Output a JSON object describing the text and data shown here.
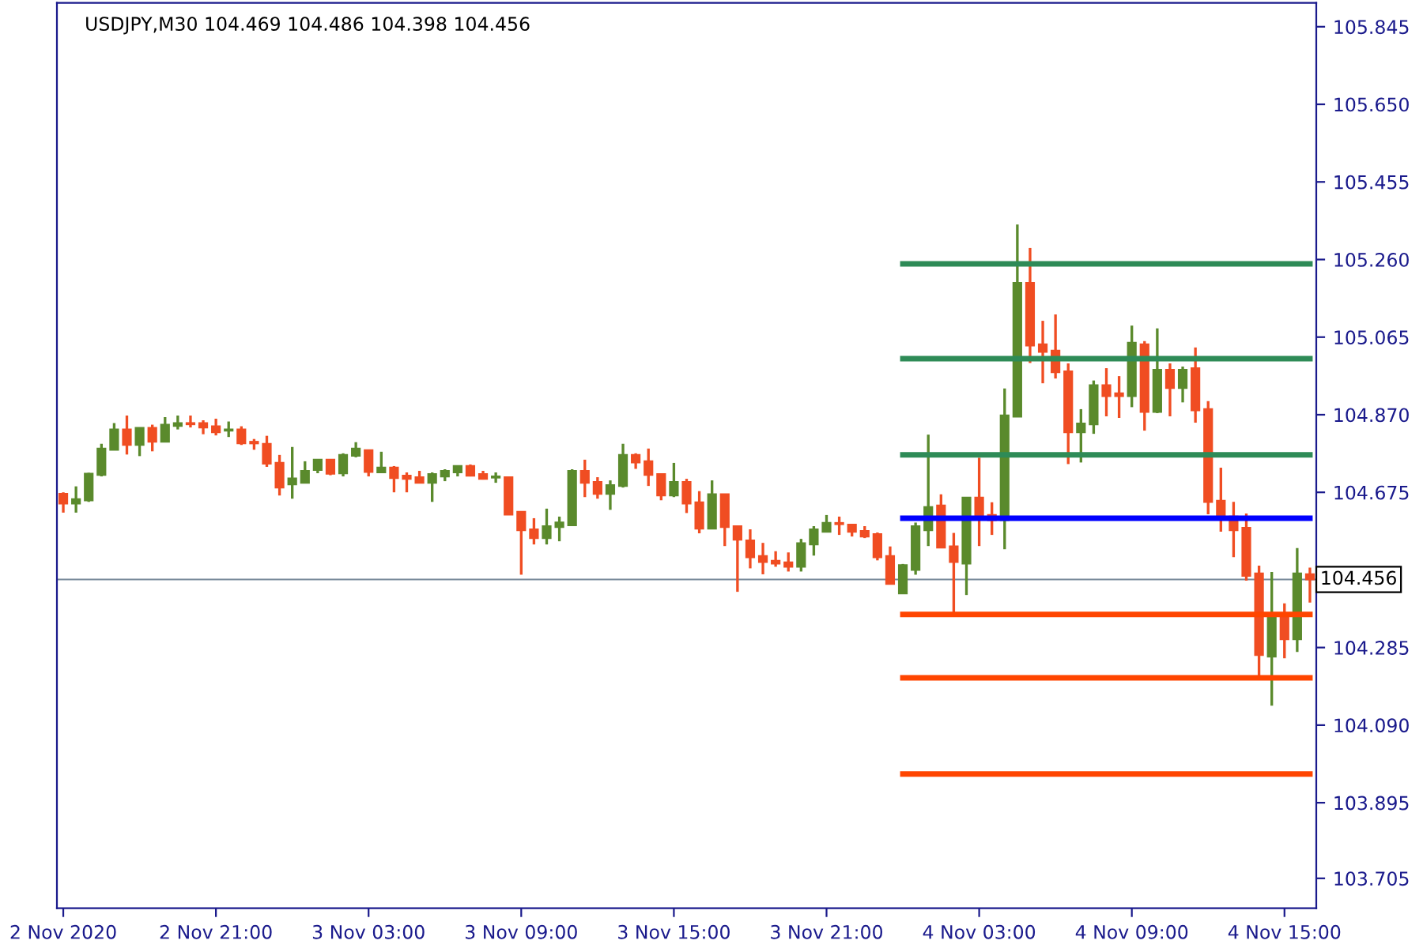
{
  "chart_data": {
    "type": "candlestick",
    "title": "USDJPY,M30 104.469 104.486 104.398 104.456",
    "categories": [
      "2 Nov 2020",
      null,
      null,
      null,
      null,
      null,
      null,
      null,
      null,
      null,
      null,
      null,
      "2 Nov 21:00",
      null,
      null,
      null,
      null,
      null,
      null,
      null,
      null,
      null,
      null,
      null,
      "3 Nov 03:00",
      null,
      null,
      null,
      null,
      null,
      null,
      null,
      null,
      null,
      null,
      null,
      "3 Nov 09:00",
      null,
      null,
      null,
      null,
      null,
      null,
      null,
      null,
      null,
      null,
      null,
      "3 Nov 15:00",
      null,
      null,
      null,
      null,
      null,
      null,
      null,
      null,
      null,
      null,
      null,
      "3 Nov 21:00",
      null,
      null,
      null,
      null,
      null,
      null,
      null,
      null,
      null,
      null,
      null,
      "4 Nov 03:00",
      null,
      null,
      null,
      null,
      null,
      null,
      null,
      null,
      null,
      null,
      null,
      "4 Nov 09:00",
      null,
      null,
      null,
      null,
      null,
      null,
      null,
      null,
      null,
      null,
      null,
      "4 Nov 15:00",
      null,
      null
    ],
    "ohlc": [
      [
        104.671,
        104.675,
        104.624,
        104.647
      ],
      [
        104.647,
        104.69,
        104.624,
        104.658
      ],
      [
        104.655,
        104.724,
        104.651,
        104.722
      ],
      [
        104.719,
        104.797,
        104.715,
        104.785
      ],
      [
        104.782,
        104.849,
        104.782,
        104.833
      ],
      [
        104.833,
        104.868,
        104.77,
        104.794
      ],
      [
        104.794,
        104.837,
        104.766,
        104.837
      ],
      [
        104.837,
        104.845,
        104.778,
        104.802
      ],
      [
        104.802,
        104.864,
        104.802,
        104.845
      ],
      [
        104.842,
        104.868,
        104.833,
        104.849
      ],
      [
        104.849,
        104.868,
        104.838,
        104.846
      ],
      [
        104.849,
        104.856,
        104.821,
        104.838
      ],
      [
        104.841,
        104.86,
        104.818,
        104.826
      ],
      [
        104.83,
        104.853,
        104.814,
        104.833
      ],
      [
        104.833,
        104.841,
        104.794,
        104.798
      ],
      [
        104.802,
        104.809,
        104.782,
        104.798
      ],
      [
        104.797,
        104.817,
        104.739,
        104.747
      ],
      [
        104.749,
        104.769,
        104.667,
        104.687
      ],
      [
        104.695,
        104.789,
        104.659,
        104.71
      ],
      [
        104.699,
        104.753,
        104.699,
        104.729
      ],
      [
        104.731,
        104.757,
        104.723,
        104.757
      ],
      [
        104.757,
        104.757,
        104.718,
        104.722
      ],
      [
        104.723,
        104.773,
        104.715,
        104.769
      ],
      [
        104.767,
        104.801,
        104.763,
        104.785
      ],
      [
        104.781,
        104.781,
        104.715,
        104.726
      ],
      [
        104.725,
        104.777,
        104.725,
        104.737
      ],
      [
        104.737,
        104.741,
        104.675,
        104.711
      ],
      [
        104.717,
        104.725,
        104.675,
        104.709
      ],
      [
        104.713,
        104.729,
        104.699,
        104.699
      ],
      [
        104.699,
        104.725,
        104.651,
        104.721
      ],
      [
        104.715,
        104.733,
        104.703,
        104.729
      ],
      [
        104.725,
        104.741,
        104.715,
        104.741
      ],
      [
        104.741,
        104.745,
        104.715,
        104.717
      ],
      [
        104.721,
        104.729,
        104.707,
        104.709
      ],
      [
        104.712,
        104.725,
        104.699,
        104.715
      ],
      [
        104.713,
        104.715,
        104.619,
        104.619
      ],
      [
        104.626,
        104.626,
        104.468,
        104.58
      ],
      [
        104.582,
        104.61,
        104.544,
        104.56
      ],
      [
        104.56,
        104.634,
        104.544,
        104.59
      ],
      [
        104.588,
        104.614,
        104.552,
        104.599
      ],
      [
        104.592,
        104.733,
        104.592,
        104.729
      ],
      [
        104.729,
        104.757,
        104.663,
        104.699
      ],
      [
        104.701,
        104.713,
        104.659,
        104.671
      ],
      [
        104.671,
        104.705,
        104.631,
        104.693
      ],
      [
        104.691,
        104.797,
        104.687,
        104.769
      ],
      [
        104.769,
        104.773,
        104.734,
        104.75
      ],
      [
        104.753,
        104.785,
        104.691,
        104.719
      ],
      [
        104.721,
        104.721,
        104.655,
        104.667
      ],
      [
        104.667,
        104.749,
        104.663,
        104.701
      ],
      [
        104.701,
        104.709,
        104.623,
        104.647
      ],
      [
        104.65,
        104.678,
        104.572,
        104.584
      ],
      [
        104.584,
        104.705,
        104.584,
        104.67
      ],
      [
        104.67,
        104.67,
        104.54,
        104.588
      ],
      [
        104.59,
        104.59,
        104.425,
        104.556
      ],
      [
        104.554,
        104.582,
        104.484,
        104.512
      ],
      [
        104.515,
        104.548,
        104.469,
        104.5
      ],
      [
        104.503,
        104.527,
        104.488,
        104.496
      ],
      [
        104.499,
        104.524,
        104.476,
        104.488
      ],
      [
        104.488,
        104.558,
        104.476,
        104.547
      ],
      [
        104.544,
        104.59,
        104.516,
        104.582
      ],
      [
        104.576,
        104.618,
        104.576,
        104.598
      ],
      [
        104.598,
        104.614,
        104.568,
        104.595
      ],
      [
        104.594,
        104.594,
        104.564,
        104.576
      ],
      [
        104.578,
        104.59,
        104.56,
        104.564
      ],
      [
        104.57,
        104.574,
        104.504,
        104.512
      ],
      [
        104.515,
        104.539,
        104.445,
        104.445
      ],
      [
        104.421,
        104.495,
        104.421,
        104.492
      ],
      [
        104.48,
        104.599,
        104.468,
        104.59
      ],
      [
        104.58,
        104.82,
        104.54,
        104.638
      ],
      [
        104.642,
        104.67,
        104.536,
        104.536
      ],
      [
        104.539,
        104.573,
        104.369,
        104.5
      ],
      [
        104.496,
        104.662,
        104.417,
        104.662
      ],
      [
        104.662,
        104.762,
        104.54,
        104.615
      ],
      [
        104.618,
        104.65,
        104.568,
        104.605
      ],
      [
        104.605,
        104.936,
        104.532,
        104.868
      ],
      [
        104.865,
        105.348,
        104.865,
        105.201
      ],
      [
        105.201,
        105.289,
        105.0,
        105.044
      ],
      [
        105.047,
        105.106,
        104.949,
        105.028
      ],
      [
        105.031,
        105.122,
        104.961,
        104.977
      ],
      [
        104.979,
        104.999,
        104.746,
        104.826
      ],
      [
        104.826,
        104.884,
        104.75,
        104.848
      ],
      [
        104.846,
        104.956,
        104.822,
        104.944
      ],
      [
        104.944,
        104.987,
        104.866,
        104.917
      ],
      [
        104.924,
        104.967,
        104.862,
        104.917
      ],
      [
        104.917,
        105.094,
        104.889,
        105.051
      ],
      [
        105.047,
        105.055,
        104.83,
        104.877
      ],
      [
        104.877,
        105.087,
        104.874,
        104.983
      ],
      [
        104.983,
        104.999,
        104.866,
        104.937
      ],
      [
        104.937,
        104.991,
        104.901,
        104.983
      ],
      [
        104.987,
        105.039,
        104.85,
        104.881
      ],
      [
        104.884,
        104.904,
        104.62,
        104.651
      ],
      [
        104.654,
        104.737,
        104.576,
        104.612
      ],
      [
        104.614,
        104.651,
        104.512,
        104.58
      ],
      [
        104.586,
        104.622,
        104.453,
        104.465
      ],
      [
        104.471,
        104.491,
        104.211,
        104.266
      ],
      [
        104.262,
        104.475,
        104.139,
        104.368
      ],
      [
        104.368,
        104.396,
        104.258,
        104.306
      ],
      [
        104.306,
        104.535,
        104.274,
        104.471
      ],
      [
        104.469,
        104.486,
        104.398,
        104.456
      ]
    ],
    "colors": [
      "#f04d22",
      "#5a8a2c",
      "#5a8a2c",
      "#5a8a2c",
      "#5a8a2c",
      "#f04d22",
      "#5a8a2c",
      "#f04d22",
      "#5a8a2c",
      "#5a8a2c",
      "#f04d22",
      "#f04d22",
      "#f04d22",
      "#5a8a2c",
      "#f04d22",
      "#f04d22",
      "#f04d22",
      "#f04d22",
      "#5a8a2c",
      "#5a8a2c",
      "#5a8a2c",
      "#f04d22",
      "#5a8a2c",
      "#5a8a2c",
      "#f04d22",
      "#5a8a2c",
      "#f04d22",
      "#f04d22",
      "#f04d22",
      "#5a8a2c",
      "#5a8a2c",
      "#5a8a2c",
      "#f04d22",
      "#f04d22",
      "#5a8a2c",
      "#f04d22",
      "#f04d22",
      "#f04d22",
      "#5a8a2c",
      "#5a8a2c",
      "#5a8a2c",
      "#f04d22",
      "#f04d22",
      "#5a8a2c",
      "#5a8a2c",
      "#f04d22",
      "#f04d22",
      "#f04d22",
      "#5a8a2c",
      "#f04d22",
      "#f04d22",
      "#5a8a2c",
      "#f04d22",
      "#f04d22",
      "#f04d22",
      "#f04d22",
      "#f04d22",
      "#f04d22",
      "#5a8a2c",
      "#5a8a2c",
      "#5a8a2c",
      "#f04d22",
      "#f04d22",
      "#f04d22",
      "#f04d22",
      "#f04d22",
      "#5a8a2c",
      "#5a8a2c",
      "#5a8a2c",
      "#f04d22",
      "#f04d22",
      "#5a8a2c",
      "#f04d22",
      "#f04d22",
      "#5a8a2c",
      "#5a8a2c",
      "#f04d22",
      "#f04d22",
      "#f04d22",
      "#f04d22",
      "#5a8a2c",
      "#5a8a2c",
      "#f04d22",
      "#f04d22",
      "#5a8a2c",
      "#f04d22",
      "#5a8a2c",
      "#f04d22",
      "#5a8a2c",
      "#f04d22",
      "#f04d22",
      "#f04d22",
      "#f04d22",
      "#f04d22",
      "#f04d22",
      "#5a8a2c",
      "#f04d22",
      "#5a8a2c",
      "#f04d22"
    ],
    "series": [
      {
        "type": "line",
        "color": "#2e8b57",
        "values": [
          null,
          null,
          null,
          null,
          null,
          null,
          null,
          null,
          null,
          null,
          null,
          null,
          null,
          null,
          null,
          null,
          null,
          null,
          null,
          null,
          null,
          null,
          null,
          null,
          null,
          null,
          null,
          null,
          null,
          null,
          null,
          null,
          null,
          null,
          null,
          null,
          null,
          null,
          null,
          null,
          null,
          null,
          null,
          null,
          null,
          null,
          null,
          null,
          null,
          null,
          null,
          null,
          null,
          null,
          null,
          null,
          null,
          null,
          null,
          null,
          null,
          null,
          null,
          null,
          null,
          null,
          105.249,
          105.249,
          105.249,
          105.249,
          105.249,
          105.249,
          105.249,
          105.249,
          105.249,
          105.249,
          105.249,
          105.249,
          105.249,
          105.249,
          105.249,
          105.249,
          105.249,
          105.249,
          105.249,
          105.249,
          105.249,
          105.249,
          105.249,
          105.249,
          105.249,
          105.249,
          105.249,
          105.249,
          105.249,
          105.249,
          105.249,
          105.249,
          105.249
        ]
      },
      {
        "type": "line",
        "color": "#2e8b57",
        "values": [
          null,
          null,
          null,
          null,
          null,
          null,
          null,
          null,
          null,
          null,
          null,
          null,
          null,
          null,
          null,
          null,
          null,
          null,
          null,
          null,
          null,
          null,
          null,
          null,
          null,
          null,
          null,
          null,
          null,
          null,
          null,
          null,
          null,
          null,
          null,
          null,
          null,
          null,
          null,
          null,
          null,
          null,
          null,
          null,
          null,
          null,
          null,
          null,
          null,
          null,
          null,
          null,
          null,
          null,
          null,
          null,
          null,
          null,
          null,
          null,
          null,
          null,
          null,
          null,
          null,
          null,
          105.011,
          105.011,
          105.011,
          105.011,
          105.011,
          105.011,
          105.011,
          105.011,
          105.011,
          105.011,
          105.011,
          105.011,
          105.011,
          105.011,
          105.011,
          105.011,
          105.011,
          105.011,
          105.011,
          105.011,
          105.011,
          105.011,
          105.011,
          105.011,
          105.011,
          105.011,
          105.011,
          105.011,
          105.011,
          105.011,
          105.011,
          105.011,
          105.011
        ]
      },
      {
        "type": "line",
        "color": "#2e8b57",
        "values": [
          null,
          null,
          null,
          null,
          null,
          null,
          null,
          null,
          null,
          null,
          null,
          null,
          null,
          null,
          null,
          null,
          null,
          null,
          null,
          null,
          null,
          null,
          null,
          null,
          null,
          null,
          null,
          null,
          null,
          null,
          null,
          null,
          null,
          null,
          null,
          null,
          null,
          null,
          null,
          null,
          null,
          null,
          null,
          null,
          null,
          null,
          null,
          null,
          null,
          null,
          null,
          null,
          null,
          null,
          null,
          null,
          null,
          null,
          null,
          null,
          null,
          null,
          null,
          null,
          null,
          null,
          104.769,
          104.769,
          104.769,
          104.769,
          104.769,
          104.769,
          104.769,
          104.769,
          104.769,
          104.769,
          104.769,
          104.769,
          104.769,
          104.769,
          104.769,
          104.769,
          104.769,
          104.769,
          104.769,
          104.769,
          104.769,
          104.769,
          104.769,
          104.769,
          104.769,
          104.769,
          104.769,
          104.769,
          104.769,
          104.769,
          104.769,
          104.769,
          104.769
        ]
      },
      {
        "type": "line",
        "color": "#0000ff",
        "values": [
          null,
          null,
          null,
          null,
          null,
          null,
          null,
          null,
          null,
          null,
          null,
          null,
          null,
          null,
          null,
          null,
          null,
          null,
          null,
          null,
          null,
          null,
          null,
          null,
          null,
          null,
          null,
          null,
          null,
          null,
          null,
          null,
          null,
          null,
          null,
          null,
          null,
          null,
          null,
          null,
          null,
          null,
          null,
          null,
          null,
          null,
          null,
          null,
          null,
          null,
          null,
          null,
          null,
          null,
          null,
          null,
          null,
          null,
          null,
          null,
          null,
          null,
          null,
          null,
          null,
          null,
          104.61,
          104.61,
          104.61,
          104.61,
          104.61,
          104.61,
          104.61,
          104.61,
          104.61,
          104.61,
          104.61,
          104.61,
          104.61,
          104.61,
          104.61,
          104.61,
          104.61,
          104.61,
          104.61,
          104.61,
          104.61,
          104.61,
          104.61,
          104.61,
          104.61,
          104.61,
          104.61,
          104.61,
          104.61,
          104.61,
          104.61,
          104.61,
          104.61
        ]
      },
      {
        "type": "line",
        "color": "#ff4500",
        "values": [
          null,
          null,
          null,
          null,
          null,
          null,
          null,
          null,
          null,
          null,
          null,
          null,
          null,
          null,
          null,
          null,
          null,
          null,
          null,
          null,
          null,
          null,
          null,
          null,
          null,
          null,
          null,
          null,
          null,
          null,
          null,
          null,
          null,
          null,
          null,
          null,
          null,
          null,
          null,
          null,
          null,
          null,
          null,
          null,
          null,
          null,
          null,
          null,
          null,
          null,
          null,
          null,
          null,
          null,
          null,
          null,
          null,
          null,
          null,
          null,
          null,
          null,
          null,
          null,
          null,
          null,
          104.368,
          104.368,
          104.368,
          104.368,
          104.368,
          104.368,
          104.368,
          104.368,
          104.368,
          104.368,
          104.368,
          104.368,
          104.368,
          104.368,
          104.368,
          104.368,
          104.368,
          104.368,
          104.368,
          104.368,
          104.368,
          104.368,
          104.368,
          104.368,
          104.368,
          104.368,
          104.368,
          104.368,
          104.368,
          104.368,
          104.368,
          104.368,
          104.368
        ]
      },
      {
        "type": "line",
        "color": "#ff4500",
        "values": [
          null,
          null,
          null,
          null,
          null,
          null,
          null,
          null,
          null,
          null,
          null,
          null,
          null,
          null,
          null,
          null,
          null,
          null,
          null,
          null,
          null,
          null,
          null,
          null,
          null,
          null,
          null,
          null,
          null,
          null,
          null,
          null,
          null,
          null,
          null,
          null,
          null,
          null,
          null,
          null,
          null,
          null,
          null,
          null,
          null,
          null,
          null,
          null,
          null,
          null,
          null,
          null,
          null,
          null,
          null,
          null,
          null,
          null,
          null,
          null,
          null,
          null,
          null,
          null,
          null,
          null,
          104.209,
          104.209,
          104.209,
          104.209,
          104.209,
          104.209,
          104.209,
          104.209,
          104.209,
          104.209,
          104.209,
          104.209,
          104.209,
          104.209,
          104.209,
          104.209,
          104.209,
          104.209,
          104.209,
          104.209,
          104.209,
          104.209,
          104.209,
          104.209,
          104.209,
          104.209,
          104.209,
          104.209,
          104.209,
          104.209,
          104.209,
          104.209,
          104.209
        ]
      },
      {
        "type": "line",
        "color": "#ff4500",
        "values": [
          null,
          null,
          null,
          null,
          null,
          null,
          null,
          null,
          null,
          null,
          null,
          null,
          null,
          null,
          null,
          null,
          null,
          null,
          null,
          null,
          null,
          null,
          null,
          null,
          null,
          null,
          null,
          null,
          null,
          null,
          null,
          null,
          null,
          null,
          null,
          null,
          null,
          null,
          null,
          null,
          null,
          null,
          null,
          null,
          null,
          null,
          null,
          null,
          null,
          null,
          null,
          null,
          null,
          null,
          null,
          null,
          null,
          null,
          null,
          null,
          null,
          null,
          null,
          null,
          null,
          null,
          103.967,
          103.967,
          103.967,
          103.967,
          103.967,
          103.967,
          103.967,
          103.967,
          103.967,
          103.967,
          103.967,
          103.967,
          103.967,
          103.967,
          103.967,
          103.967,
          103.967,
          103.967,
          103.967,
          103.967,
          103.967,
          103.967,
          103.967,
          103.967,
          103.967,
          103.967,
          103.967,
          103.967,
          103.967,
          103.967,
          103.967,
          103.967,
          103.967
        ]
      }
    ],
    "ref_lines": [
      {
        "axis": "y",
        "value": 104.456,
        "label": "104.456",
        "color": "#778899"
      }
    ],
    "ylim": [
      103.63,
      105.905
    ],
    "yticks": [
      105.845,
      {
        "value": 105.65,
        "label": "105.650"
      },
      105.455,
      {
        "value": 105.26,
        "label": "105.260"
      },
      105.065,
      {
        "value": 104.87,
        "label": "104.870"
      },
      104.675,
      104.285,
      {
        "value": 104.09,
        "label": "104.090"
      },
      103.895,
      103.705
    ],
    "grid": false,
    "legend": false
  }
}
